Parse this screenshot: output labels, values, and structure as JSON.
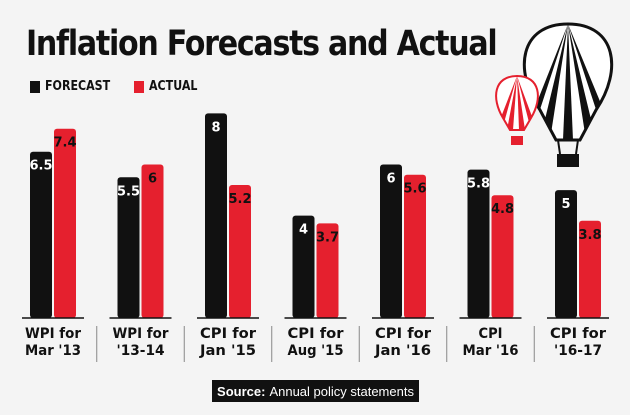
{
  "title": "Inflation Forecasts and Actual",
  "legend": {
    "forecast": "FORECAST",
    "actual": "ACTUAL"
  },
  "colors": {
    "forecast": "#111111",
    "actual": "#e5202e",
    "background": "#f4f4f4"
  },
  "source": {
    "label": "Source:",
    "text": "Annual policy statements"
  },
  "chart_data": {
    "type": "bar",
    "title": "Inflation Forecasts and Actual",
    "xlabel": "",
    "ylabel": "",
    "ylim": [
      0,
      8.6
    ],
    "grid": false,
    "legend_position": "top-left",
    "categories": [
      [
        "WPI for",
        "Mar '13"
      ],
      [
        "WPI for",
        "'13-14"
      ],
      [
        "CPI for",
        "Jan '15"
      ],
      [
        "CPI for",
        "Aug '15"
      ],
      [
        "CPI for",
        "Jan '16"
      ],
      [
        "CPI",
        "Mar '16"
      ],
      [
        "CPI for",
        "'16-17"
      ]
    ],
    "series": [
      {
        "name": "FORECAST",
        "values": [
          6.5,
          5.5,
          8,
          4,
          6,
          5.8,
          5
        ],
        "labels": [
          "6.5",
          "5.5",
          "8",
          "4",
          "6",
          "5.8",
          "5"
        ]
      },
      {
        "name": "ACTUAL",
        "values": [
          7.4,
          6,
          5.2,
          3.7,
          5.6,
          4.8,
          3.8
        ],
        "labels": [
          "7.4",
          "6",
          "5.2",
          "3.7",
          "5.6",
          "4.8",
          "3.8"
        ]
      }
    ]
  }
}
